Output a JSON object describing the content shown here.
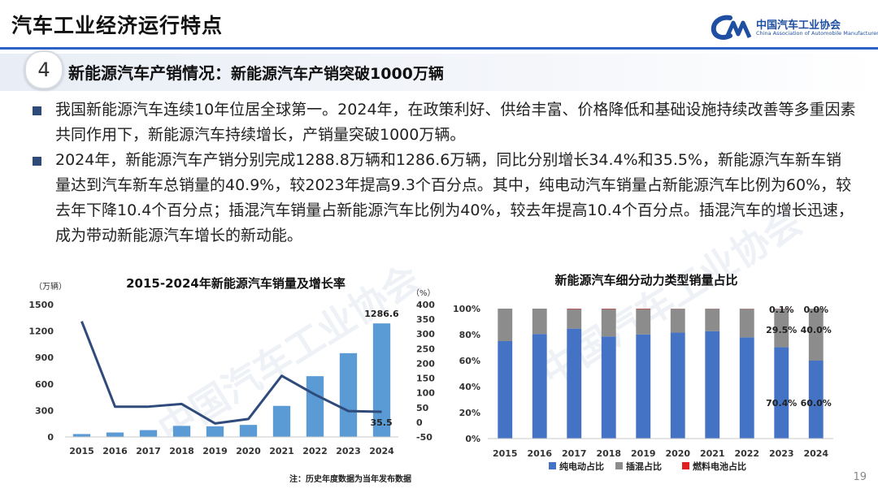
{
  "header": {
    "title": "汽车工业经济运行特点",
    "logo_cn": "中国汽车工业协会",
    "logo_en": "China Association of Automobile Manufacturers"
  },
  "section": {
    "number": "4",
    "title": "新能源汽车产销情况：",
    "subtitle": "新能源汽车产销突破1000万辆"
  },
  "bullets": [
    "我国新能源汽车连续10年位居全球第一。2024年，在政策利好、供给丰富、价格降低和基础设施持续改善等多重因素共同作用下，新能源汽车持续增长，产销量突破1000万辆。",
    "2024年，新能源汽车产销分别完成1288.8万辆和1286.6万辆，同比分别增长34.4%和35.5%，新能源汽车新车销量达到汽车新车总销量的40.9%，较2023年提高9.3个百分点。其中，纯电动汽车销量占新能源汽车比例为60%，较去年下降10.4个百分点；插混汽车销量占新能源汽车比例为40%，较去年提高10.4个百分点。插混汽车的增长迅速，成为带动新能源汽车增长的新动能。"
  ],
  "chart_data": [
    {
      "type": "bar",
      "title": "2015-2024年新能源汽车销量及增长率",
      "y_unit": "（万辆）",
      "y2_unit": "（%）",
      "categories": [
        "2015",
        "2016",
        "2017",
        "2018",
        "2019",
        "2020",
        "2021",
        "2022",
        "2023",
        "2024"
      ],
      "series": [
        {
          "kind": "bar",
          "axis": "left",
          "values": [
            33.1,
            50.7,
            77.7,
            125.6,
            120.6,
            136.7,
            352.1,
            688.7,
            949.5,
            1286.6
          ],
          "color": "#5b9bd5"
        },
        {
          "kind": "line",
          "axis": "right",
          "values": [
            343,
            53,
            53,
            62,
            -4,
            11,
            158,
            94,
            38,
            35.5
          ],
          "color": "#2f4b7c"
        }
      ],
      "labels": [
        {
          "index": 9,
          "series": 0,
          "text": "1286.6"
        },
        {
          "index": 9,
          "series": 1,
          "text": "35.5"
        }
      ],
      "ylim": [
        0,
        1500
      ],
      "y_ticks": [
        "0",
        "300",
        "600",
        "900",
        "1200",
        "1500"
      ],
      "y2lim": [
        -50,
        400
      ],
      "y2_ticks": [
        "-50",
        "0",
        "50",
        "100",
        "150",
        "200",
        "250",
        "300",
        "350",
        "400"
      ],
      "grid": false
    },
    {
      "type": "bar",
      "stacked": true,
      "title": "新能源汽车细分动力类型销量占比",
      "categories": [
        "2015",
        "2016",
        "2017",
        "2018",
        "2019",
        "2020",
        "2021",
        "2022",
        "2023",
        "2024"
      ],
      "series": [
        {
          "name": "纯电动占比",
          "values": [
            75,
            80.5,
            84.6,
            78.6,
            80.2,
            81.6,
            82.7,
            77.9,
            70.4,
            60.0
          ],
          "color": "#4472c4"
        },
        {
          "name": "插混占比",
          "values": [
            25,
            19.5,
            15.1,
            21.1,
            19.5,
            18.3,
            17.2,
            22.0,
            29.5,
            40.0
          ],
          "color": "#8c8c8c"
        },
        {
          "name": "燃料电池占比",
          "values": [
            0.0,
            0.0,
            0.3,
            0.3,
            0.3,
            0.1,
            0.1,
            0.1,
            0.1,
            0.0
          ],
          "color": "#e02020"
        }
      ],
      "labels": [
        {
          "index": 8,
          "series": 0,
          "text": "70.4%"
        },
        {
          "index": 8,
          "series": 1,
          "text": "29.5%"
        },
        {
          "index": 8,
          "series": 2,
          "text": "0.1%"
        },
        {
          "index": 9,
          "series": 0,
          "text": "60.0%"
        },
        {
          "index": 9,
          "series": 1,
          "text": "40.0%"
        },
        {
          "index": 9,
          "series": 2,
          "text": "0.0%"
        }
      ],
      "ylim": [
        0,
        100
      ],
      "y_ticks": [
        "0%",
        "20%",
        "40%",
        "60%",
        "80%",
        "100%"
      ],
      "legend": "bottom",
      "grid": false
    }
  ],
  "note": "注：历史年度数据为当年发布数据",
  "page_number": "19"
}
